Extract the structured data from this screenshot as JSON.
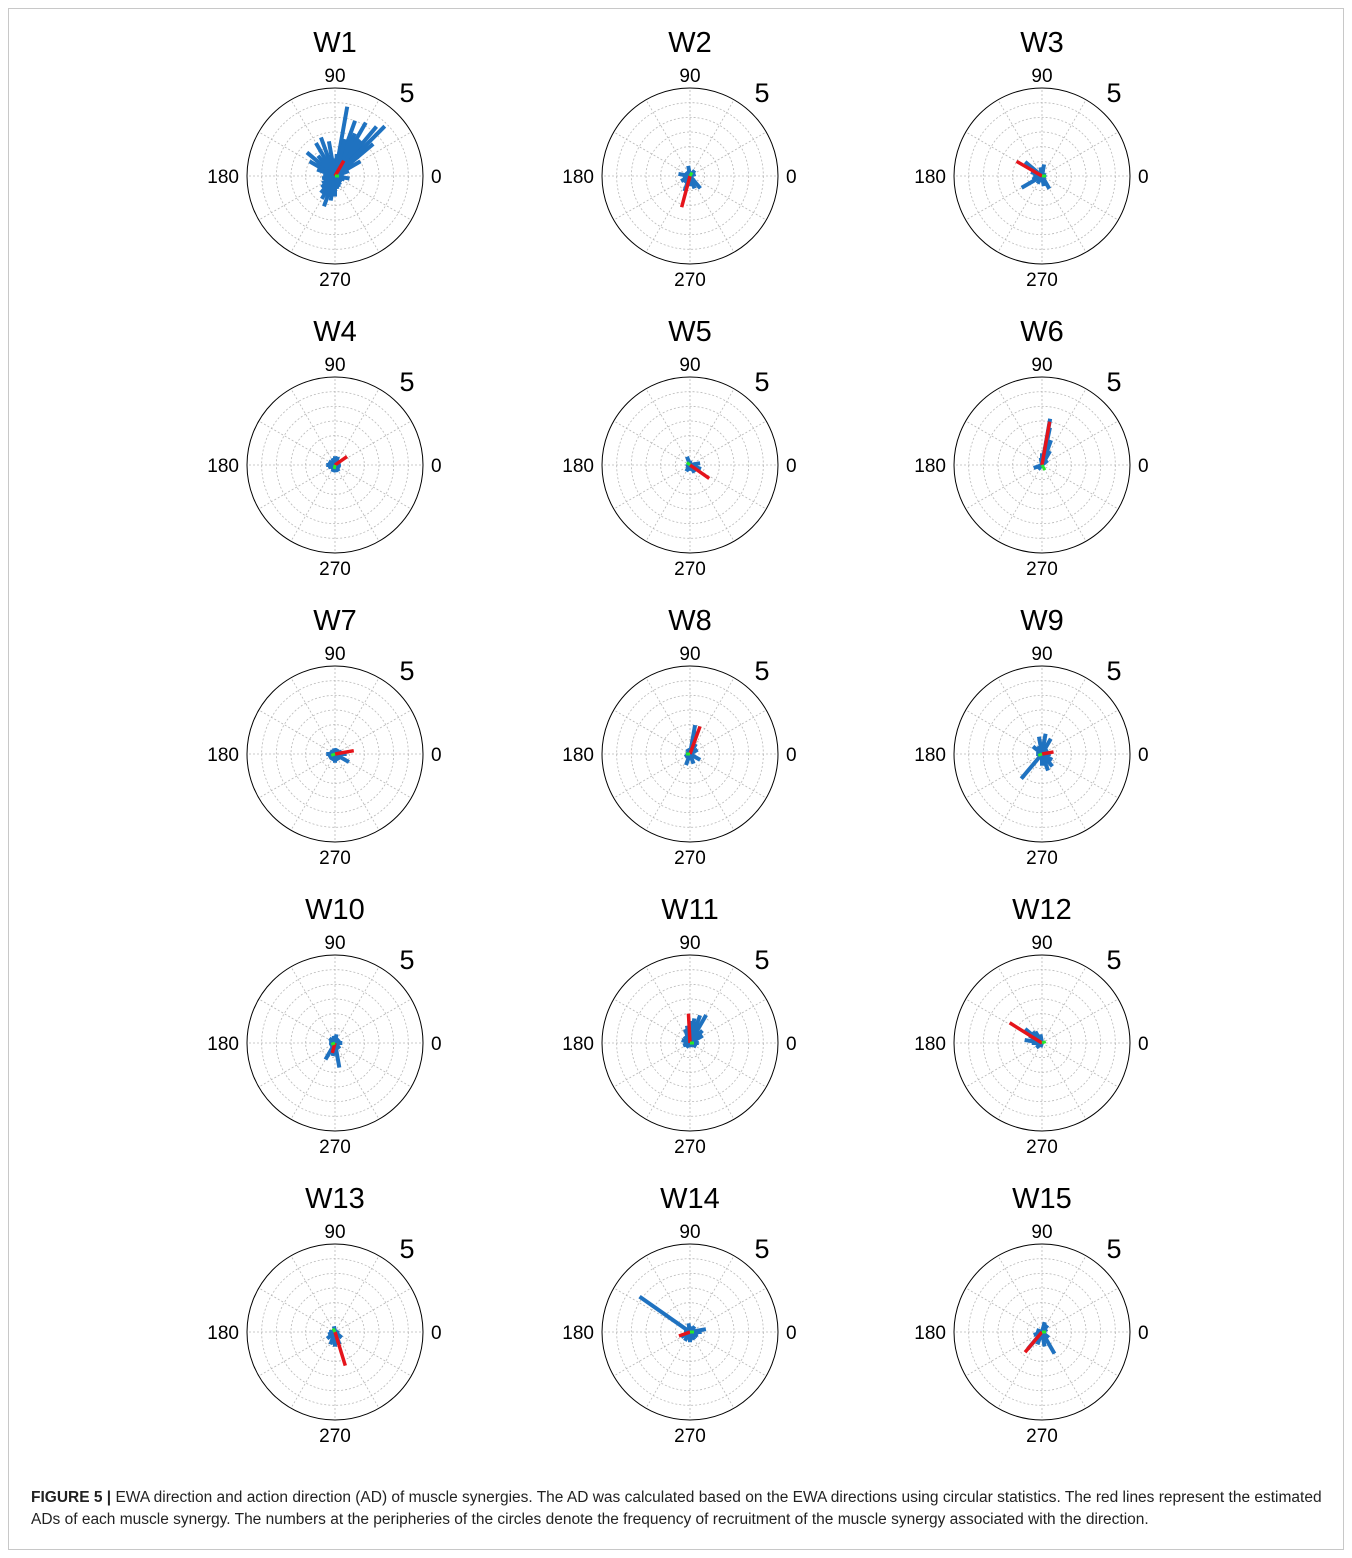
{
  "figure": {
    "caption_label": "FIGURE 5 |",
    "caption_text": " EWA direction and action direction (AD) of muscle synergies. The AD was calculated based on the EWA directions using circular statistics. The red lines represent the estimated ADs of each muscle synergy. The numbers at the peripheries of the circles denote the frequency of recruitment of the muscle synergy associated with the direction."
  },
  "colors": {
    "bars": "#1f72c0",
    "ad_line": "#e5141b",
    "mean_marker": "#27e82b",
    "grid": "#b9b9b9",
    "outer_circle": "#000000"
  },
  "chart_data": [
    {
      "type": "polar",
      "title": "W1",
      "angle_labels": [
        "90",
        "180",
        "0",
        "270"
      ],
      "r_tick_label": "5",
      "rmax": 6,
      "grid": true,
      "bars": [
        [
          80,
          4.8
        ],
        [
          70,
          4.0
        ],
        [
          60,
          4.2
        ],
        [
          50,
          4.4
        ],
        [
          45,
          4.8
        ],
        [
          40,
          3.4
        ],
        [
          55,
          3.0
        ],
        [
          65,
          3.2
        ],
        [
          75,
          2.6
        ],
        [
          85,
          1.5
        ],
        [
          95,
          1.2
        ],
        [
          100,
          2.4
        ],
        [
          110,
          2.8
        ],
        [
          120,
          2.6
        ],
        [
          130,
          1.8
        ],
        [
          140,
          2.5
        ],
        [
          150,
          2.0
        ],
        [
          160,
          1.3
        ],
        [
          170,
          0.8
        ],
        [
          180,
          0.8
        ],
        [
          190,
          0.9
        ],
        [
          200,
          0.8
        ],
        [
          210,
          1.0
        ],
        [
          220,
          1.2
        ],
        [
          230,
          1.5
        ],
        [
          240,
          1.8
        ],
        [
          250,
          2.2
        ],
        [
          260,
          1.7
        ],
        [
          270,
          1.4
        ],
        [
          280,
          0.9
        ],
        [
          290,
          0.8
        ],
        [
          300,
          0.7
        ],
        [
          320,
          0.6
        ],
        [
          340,
          0.7
        ],
        [
          350,
          1.0
        ],
        [
          10,
          0.6
        ],
        [
          20,
          1.0
        ],
        [
          30,
          2.0
        ]
      ],
      "ad": [
        60,
        1.2
      ],
      "mean": [
        0,
        0.1
      ]
    },
    {
      "type": "polar",
      "title": "W2",
      "angle_labels": [
        "90",
        "180",
        "0",
        "270"
      ],
      "r_tick_label": "5",
      "rmax": 6,
      "grid": true,
      "bars": [
        [
          100,
          0.7
        ],
        [
          50,
          0.5
        ],
        [
          20,
          0.4
        ],
        [
          170,
          0.8
        ],
        [
          190,
          0.5
        ],
        [
          210,
          0.7
        ],
        [
          250,
          1.1
        ],
        [
          270,
          0.7
        ],
        [
          290,
          0.9
        ],
        [
          310,
          1.1
        ],
        [
          130,
          0.4
        ],
        [
          230,
          0.6
        ]
      ],
      "ad": [
        255,
        2.2
      ],
      "mean": [
        60,
        0.1
      ]
    },
    {
      "type": "polar",
      "title": "W3",
      "angle_labels": [
        "90",
        "180",
        "0",
        "270"
      ],
      "r_tick_label": "5",
      "rmax": 6,
      "grid": true,
      "bars": [
        [
          80,
          0.8
        ],
        [
          100,
          0.6
        ],
        [
          140,
          1.5
        ],
        [
          160,
          0.8
        ],
        [
          180,
          0.6
        ],
        [
          200,
          0.7
        ],
        [
          210,
          1.6
        ],
        [
          240,
          0.6
        ],
        [
          280,
          0.7
        ],
        [
          300,
          1.0
        ],
        [
          20,
          0.3
        ],
        [
          340,
          0.3
        ]
      ],
      "ad": [
        150,
        2.0
      ],
      "mean": [
        0,
        0.05
      ]
    },
    {
      "type": "polar",
      "title": "W4",
      "angle_labels": [
        "90",
        "180",
        "0",
        "270"
      ],
      "r_tick_label": "5",
      "rmax": 6,
      "grid": true,
      "bars": [
        [
          90,
          0.6
        ],
        [
          70,
          0.6
        ],
        [
          110,
          0.5
        ],
        [
          150,
          0.5
        ],
        [
          180,
          0.6
        ],
        [
          200,
          0.5
        ],
        [
          220,
          0.4
        ],
        [
          250,
          0.5
        ],
        [
          280,
          0.5
        ],
        [
          300,
          0.5
        ],
        [
          330,
          0.4
        ],
        [
          10,
          0.4
        ],
        [
          40,
          0.4
        ]
      ],
      "ad": [
        35,
        1.0
      ],
      "mean": [
        260,
        0.2
      ]
    },
    {
      "type": "polar",
      "title": "W5",
      "angle_labels": [
        "90",
        "180",
        "0",
        "270"
      ],
      "r_tick_label": "5",
      "rmax": 6,
      "grid": true,
      "bars": [
        [
          110,
          0.6
        ],
        [
          90,
          0.3
        ],
        [
          340,
          0.8
        ],
        [
          10,
          0.7
        ],
        [
          300,
          0.6
        ],
        [
          270,
          0.4
        ],
        [
          200,
          0.3
        ],
        [
          240,
          0.5
        ]
      ],
      "ad": [
        325,
        1.6
      ],
      "mean": [
        140,
        0.05
      ]
    },
    {
      "type": "polar",
      "title": "W6",
      "angle_labels": [
        "90",
        "180",
        "0",
        "270"
      ],
      "r_tick_label": "5",
      "rmax": 6,
      "grid": true,
      "bars": [
        [
          80,
          3.2
        ],
        [
          78,
          2.6
        ],
        [
          70,
          1.8
        ],
        [
          60,
          1.1
        ],
        [
          90,
          0.8
        ],
        [
          100,
          0.5
        ],
        [
          200,
          0.6
        ],
        [
          230,
          0.4
        ],
        [
          40,
          0.5
        ]
      ],
      "ad": [
        80,
        3.0
      ],
      "mean": [
        300,
        0.4
      ]
    },
    {
      "type": "polar",
      "title": "W7",
      "angle_labels": [
        "90",
        "180",
        "0",
        "270"
      ],
      "r_tick_label": "5",
      "rmax": 6,
      "grid": true,
      "bars": [
        [
          0,
          0.8
        ],
        [
          20,
          0.5
        ],
        [
          60,
          0.4
        ],
        [
          100,
          0.4
        ],
        [
          150,
          0.4
        ],
        [
          180,
          0.6
        ],
        [
          210,
          0.5
        ],
        [
          240,
          0.5
        ],
        [
          270,
          0.6
        ],
        [
          300,
          0.5
        ],
        [
          330,
          1.1
        ]
      ],
      "ad": [
        10,
        1.3
      ],
      "mean": [
        200,
        0.1
      ]
    },
    {
      "type": "polar",
      "title": "W8",
      "angle_labels": [
        "90",
        "180",
        "0",
        "270"
      ],
      "r_tick_label": "5",
      "rmax": 6,
      "grid": true,
      "bars": [
        [
          80,
          2.0
        ],
        [
          75,
          1.6
        ],
        [
          60,
          0.8
        ],
        [
          30,
          0.6
        ],
        [
          330,
          0.8
        ],
        [
          290,
          0.7
        ],
        [
          250,
          0.8
        ],
        [
          210,
          0.4
        ],
        [
          120,
          0.4
        ],
        [
          180,
          0.3
        ]
      ],
      "ad": [
        70,
        2.0
      ],
      "mean": [
        180,
        0.2
      ]
    },
    {
      "type": "polar",
      "title": "W9",
      "angle_labels": [
        "90",
        "180",
        "0",
        "270"
      ],
      "r_tick_label": "5",
      "rmax": 6,
      "grid": true,
      "bars": [
        [
          80,
          1.4
        ],
        [
          100,
          1.2
        ],
        [
          60,
          1.2
        ],
        [
          120,
          0.6
        ],
        [
          140,
          0.8
        ],
        [
          180,
          0.4
        ],
        [
          230,
          2.2
        ],
        [
          270,
          0.8
        ],
        [
          290,
          1.2
        ],
        [
          310,
          1.1
        ],
        [
          330,
          0.8
        ],
        [
          0,
          0.6
        ],
        [
          30,
          0.5
        ]
      ],
      "ad": [
        10,
        0.8
      ],
      "mean": [
        200,
        0.05
      ]
    },
    {
      "type": "polar",
      "title": "W10",
      "angle_labels": [
        "90",
        "180",
        "0",
        "270"
      ],
      "r_tick_label": "5",
      "rmax": 6,
      "grid": true,
      "bars": [
        [
          80,
          0.6
        ],
        [
          100,
          0.5
        ],
        [
          140,
          0.5
        ],
        [
          180,
          0.4
        ],
        [
          200,
          0.4
        ],
        [
          240,
          1.3
        ],
        [
          260,
          0.9
        ],
        [
          280,
          1.7
        ],
        [
          310,
          0.5
        ],
        [
          0,
          0.5
        ],
        [
          40,
          0.4
        ]
      ],
      "ad": [
        255,
        0.7
      ],
      "mean": [
        200,
        0.1
      ]
    },
    {
      "type": "polar",
      "title": "W11",
      "angle_labels": [
        "90",
        "180",
        "0",
        "270"
      ],
      "r_tick_label": "5",
      "rmax": 6,
      "grid": true,
      "bars": [
        [
          60,
          2.2
        ],
        [
          70,
          2.0
        ],
        [
          80,
          1.7
        ],
        [
          90,
          1.5
        ],
        [
          100,
          1.2
        ],
        [
          110,
          1.0
        ],
        [
          130,
          0.6
        ],
        [
          160,
          0.6
        ],
        [
          200,
          0.5
        ],
        [
          230,
          0.4
        ],
        [
          280,
          0.3
        ],
        [
          330,
          0.5
        ],
        [
          0,
          0.6
        ],
        [
          30,
          1.0
        ],
        [
          45,
          1.2
        ]
      ],
      "ad": [
        93,
        2.0
      ],
      "mean": [
        0,
        0.05
      ]
    },
    {
      "type": "polar",
      "title": "W12",
      "angle_labels": [
        "90",
        "180",
        "0",
        "270"
      ],
      "r_tick_label": "5",
      "rmax": 6,
      "grid": true,
      "bars": [
        [
          120,
          0.9
        ],
        [
          130,
          1.0
        ],
        [
          140,
          1.5
        ],
        [
          150,
          1.0
        ],
        [
          160,
          0.8
        ],
        [
          170,
          1.2
        ],
        [
          180,
          0.7
        ],
        [
          200,
          0.4
        ],
        [
          220,
          0.5
        ],
        [
          100,
          0.6
        ],
        [
          250,
          0.3
        ]
      ],
      "ad": [
        148,
        2.6
      ],
      "mean": [
        20,
        0.05
      ]
    },
    {
      "type": "polar",
      "title": "W13",
      "angle_labels": [
        "90",
        "180",
        "0",
        "270"
      ],
      "r_tick_label": "5",
      "rmax": 6,
      "grid": true,
      "bars": [
        [
          100,
          0.4
        ],
        [
          70,
          0.2
        ],
        [
          180,
          0.4
        ],
        [
          200,
          0.5
        ],
        [
          220,
          0.7
        ],
        [
          250,
          0.9
        ],
        [
          270,
          1.0
        ],
        [
          290,
          0.9
        ],
        [
          320,
          0.6
        ],
        [
          350,
          0.3
        ]
      ],
      "ad": [
        287,
        2.4
      ],
      "mean": [
        120,
        0.15
      ]
    },
    {
      "type": "polar",
      "title": "W14",
      "angle_labels": [
        "90",
        "180",
        "0",
        "270"
      ],
      "r_tick_label": "5",
      "rmax": 6,
      "grid": true,
      "bars": [
        [
          145,
          4.2
        ],
        [
          100,
          0.6
        ],
        [
          80,
          0.4
        ],
        [
          50,
          0.5
        ],
        [
          10,
          1.1
        ],
        [
          0,
          0.8
        ],
        [
          330,
          0.6
        ],
        [
          300,
          0.6
        ],
        [
          270,
          0.7
        ],
        [
          240,
          0.7
        ],
        [
          210,
          0.7
        ],
        [
          180,
          0.4
        ],
        [
          160,
          0.4
        ]
      ],
      "ad": [
        200,
        0.8
      ],
      "mean": [
        0,
        0.05
      ]
    },
    {
      "type": "polar",
      "title": "W15",
      "angle_labels": [
        "90",
        "180",
        "0",
        "270"
      ],
      "r_tick_label": "5",
      "rmax": 6,
      "grid": true,
      "bars": [
        [
          75,
          0.7
        ],
        [
          50,
          0.6
        ],
        [
          30,
          0.4
        ],
        [
          160,
          0.4
        ],
        [
          200,
          0.6
        ],
        [
          230,
          1.5
        ],
        [
          250,
          0.9
        ],
        [
          280,
          1.0
        ],
        [
          300,
          1.7
        ],
        [
          320,
          0.6
        ],
        [
          0,
          0.3
        ]
      ],
      "ad": [
        230,
        1.8
      ],
      "mean": [
        0,
        0.05
      ]
    }
  ]
}
